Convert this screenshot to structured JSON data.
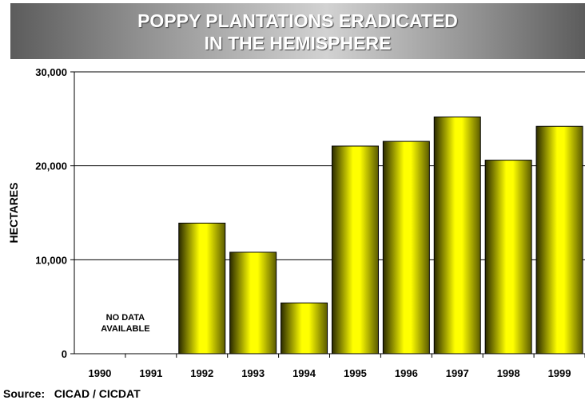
{
  "colors": {
    "bar_bright": "#ffff00",
    "bar_dark": "#2a2a00",
    "grid": "#000000"
  },
  "source_text": "Source:   CICAD / CICDAT",
  "chart_data": {
    "type": "bar",
    "title": [
      "POPPY PLANTATIONS ERADICATED",
      "IN THE HEMISPHERE"
    ],
    "ylabel": "HECTARES",
    "xlabel": "",
    "ylim": [
      0,
      30000
    ],
    "yticks": [
      0,
      10000,
      20000,
      30000
    ],
    "ytick_labels": [
      "0",
      "10,000",
      "20,000",
      "30,000"
    ],
    "categories": [
      "1990",
      "1991",
      "1992",
      "1993",
      "1994",
      "1995",
      "1996",
      "1997",
      "1998",
      "1999"
    ],
    "values": [
      null,
      null,
      13900,
      10800,
      5400,
      22100,
      22600,
      25200,
      20600,
      24200
    ],
    "annotation": {
      "category": "1990",
      "text": [
        "NO DATA",
        "AVAILABLE"
      ]
    },
    "grid": true
  }
}
